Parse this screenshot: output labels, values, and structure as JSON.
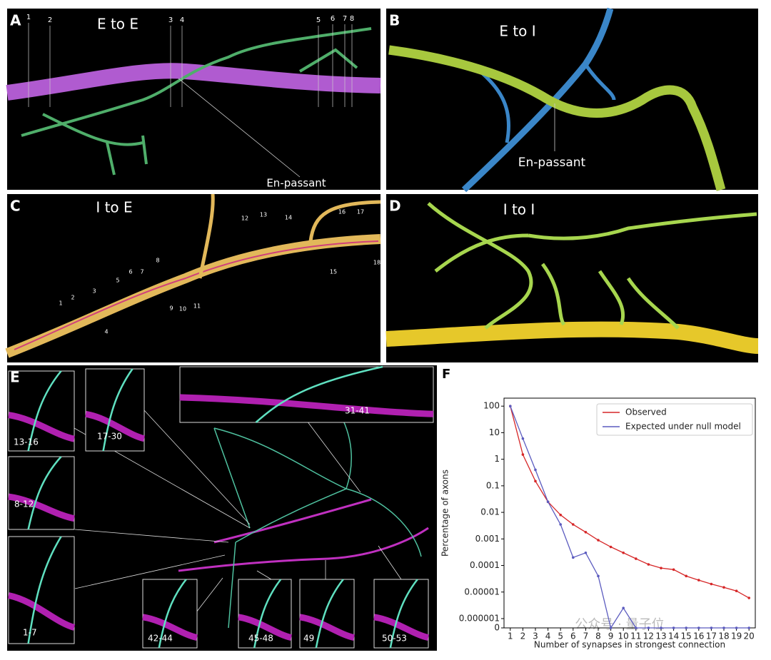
{
  "panels": {
    "A": {
      "label": "A",
      "title": "E to E",
      "annotation": "En-passant",
      "numbers": [
        "1",
        "2",
        "3",
        "4",
        "5",
        "6",
        "7",
        "8"
      ]
    },
    "B": {
      "label": "B",
      "title": "E to I",
      "annotation": "En-passant"
    },
    "C": {
      "label": "C",
      "title": "I to E",
      "numbers": [
        "1",
        "2",
        "3",
        "4",
        "5",
        "6",
        "7",
        "8",
        "9",
        "10",
        "11",
        "12",
        "13",
        "14",
        "15",
        "16",
        "17",
        "18"
      ]
    },
    "D": {
      "label": "D",
      "title": "I to I"
    },
    "E": {
      "label": "E",
      "insets": [
        "13-16",
        "17-30",
        "31-41",
        "8-12",
        "1-7",
        "42-44",
        "45-48",
        "49",
        "50-53"
      ]
    },
    "F": {
      "label": "F"
    }
  },
  "watermark": "公众号 · 量子位",
  "chart_data": {
    "type": "line",
    "xlabel": "Number of synapses in strongest connection",
    "ylabel": "Percentage of axons",
    "x": [
      1,
      2,
      3,
      4,
      5,
      6,
      7,
      8,
      9,
      10,
      11,
      12,
      13,
      14,
      15,
      16,
      17,
      18,
      19,
      20
    ],
    "xlim": [
      0.5,
      20.5
    ],
    "xticks": [
      1,
      2,
      3,
      4,
      5,
      6,
      7,
      8,
      9,
      10,
      11,
      12,
      13,
      14,
      15,
      16,
      17,
      18,
      19,
      20
    ],
    "yscale": "symlog",
    "linthresh": 1e-06,
    "ylim": [
      0,
      200
    ],
    "yticks": [
      0,
      1e-06,
      1e-05,
      0.0001,
      0.001,
      0.01,
      0.1,
      1,
      10,
      100
    ],
    "legend": "upper right",
    "series": [
      {
        "name": "Observed",
        "color": "#d62728",
        "values": [
          100,
          1.5,
          0.15,
          0.025,
          0.008,
          0.0035,
          0.0018,
          0.0009,
          0.0005,
          0.0003,
          0.00018,
          0.00011,
          8e-05,
          7e-05,
          4e-05,
          2.8e-05,
          2e-05,
          1.5e-05,
          1.1e-05,
          6e-06
        ]
      },
      {
        "name": "Expected under null model",
        "color": "#5b5bbf",
        "values": [
          100,
          6,
          0.4,
          0.025,
          0.0035,
          0.0002,
          0.0003,
          4e-05,
          0,
          2.5e-06,
          0,
          0,
          0,
          0,
          0,
          0,
          0,
          0,
          0,
          0
        ]
      }
    ]
  }
}
